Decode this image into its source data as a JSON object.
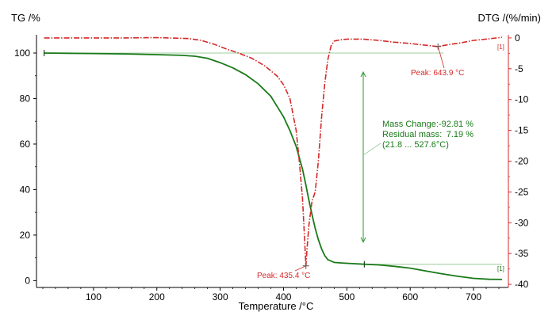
{
  "chart_data": {
    "type": "line",
    "xlabel": "Temperature /°C",
    "ylabel_left": "TG /%",
    "ylabel_right": "DTG /(%/min)",
    "xlim": [
      10,
      755
    ],
    "ylim_left": [
      -3,
      108
    ],
    "ylim_right": [
      -40.5,
      0.5
    ],
    "x_ticks": [
      100,
      200,
      300,
      400,
      500,
      600,
      700
    ],
    "y_left_ticks": [
      0,
      20,
      40,
      60,
      80,
      100
    ],
    "y_right_ticks": [
      0,
      -5,
      -10,
      -15,
      -20,
      -25,
      -30,
      -35,
      -40
    ],
    "grid": false,
    "colors": {
      "tg": "#1a7a1a",
      "dtg": "#d42a2a",
      "ref": "#9ccc9c",
      "arrow": "#2e9a2e"
    },
    "series": [
      {
        "axis": "left",
        "style": "solid",
        "x": [
          22,
          60,
          100,
          150,
          200,
          240,
          260,
          280,
          300,
          320,
          340,
          360,
          380,
          400,
          410,
          420,
          430,
          435.4,
          440,
          445,
          450,
          455,
          460,
          465,
          470,
          480,
          490,
          500,
          527.6,
          550,
          575,
          600,
          625,
          650,
          675,
          700,
          725,
          745
        ],
        "values": [
          100,
          99.9,
          99.8,
          99.6,
          99.3,
          99.0,
          98.6,
          97.7,
          95.8,
          93.5,
          90.5,
          86.5,
          81.0,
          72.0,
          66.0,
          59.0,
          49.0,
          42.0,
          35.5,
          29.0,
          23.0,
          18.0,
          14.0,
          11.0,
          9.2,
          8.0,
          7.8,
          7.6,
          7.19,
          6.9,
          6.3,
          5.5,
          4.2,
          3.0,
          1.9,
          1.0,
          0.6,
          0.5
        ]
      },
      {
        "axis": "right",
        "style": "dashdot",
        "x": [
          22,
          100,
          150,
          200,
          250,
          270,
          290,
          310,
          330,
          350,
          370,
          390,
          400,
          410,
          420,
          425,
          430,
          433,
          435.4,
          437,
          440,
          445,
          450,
          455,
          460,
          465,
          470,
          475,
          480,
          490,
          500,
          525,
          550,
          575,
          600,
          625,
          643.9,
          660,
          680,
          700,
          720,
          745
        ],
        "values": [
          0,
          0,
          0,
          0.05,
          -0.1,
          -0.4,
          -1.0,
          -1.8,
          -2.5,
          -3.3,
          -4.5,
          -6.2,
          -7.6,
          -9.8,
          -15.0,
          -20.0,
          -26.0,
          -32.0,
          -37.0,
          -34.5,
          -30.5,
          -26.5,
          -25.0,
          -20.0,
          -13.0,
          -7.5,
          -3.5,
          -1.3,
          -0.5,
          -0.3,
          -0.2,
          -0.2,
          -0.4,
          -0.7,
          -0.9,
          -1.2,
          -1.4,
          -1.1,
          -0.8,
          -0.4,
          -0.2,
          0.1
        ]
      }
    ],
    "annotations": {
      "peak_dtg_low": "Peak: 435.4 °C",
      "peak_dtg_high": "Peak: 643.9 °C",
      "mass_change_label": "Mass Change:",
      "mass_change_value": "-92.81 %",
      "residual_label": "Residual mass:",
      "residual_value": "7.19 %",
      "range": "(21.8 ... 527.6°C)",
      "curve_tag_tg": "[1]",
      "curve_tag_dtg": "[1]"
    },
    "mass_change_step": {
      "x": 527.6,
      "start_tg": 100,
      "end_tg": 7.19
    }
  }
}
